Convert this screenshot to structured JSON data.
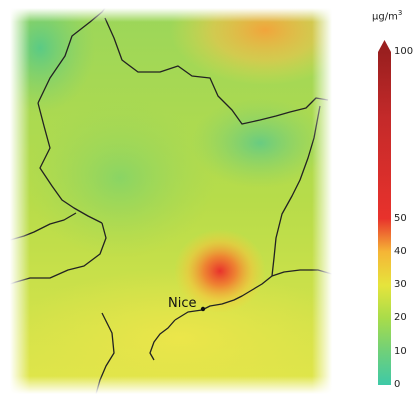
{
  "map": {
    "city_label": "Nice"
  },
  "legend": {
    "unit_prefix": "µg/m",
    "unit_exp": "3",
    "max": 100,
    "ticks": [
      {
        "value": 100,
        "label": "100"
      },
      {
        "value": 50,
        "label": "50"
      },
      {
        "value": 40,
        "label": "40"
      },
      {
        "value": 30,
        "label": "30"
      },
      {
        "value": 20,
        "label": "20"
      },
      {
        "value": 10,
        "label": "10"
      },
      {
        "value": 0,
        "label": "0"
      }
    ],
    "colors": {
      "low": "#3ec9a7",
      "mid": "#c8e23a",
      "high": "#e8322c",
      "max": "#9a1f1f"
    }
  }
}
